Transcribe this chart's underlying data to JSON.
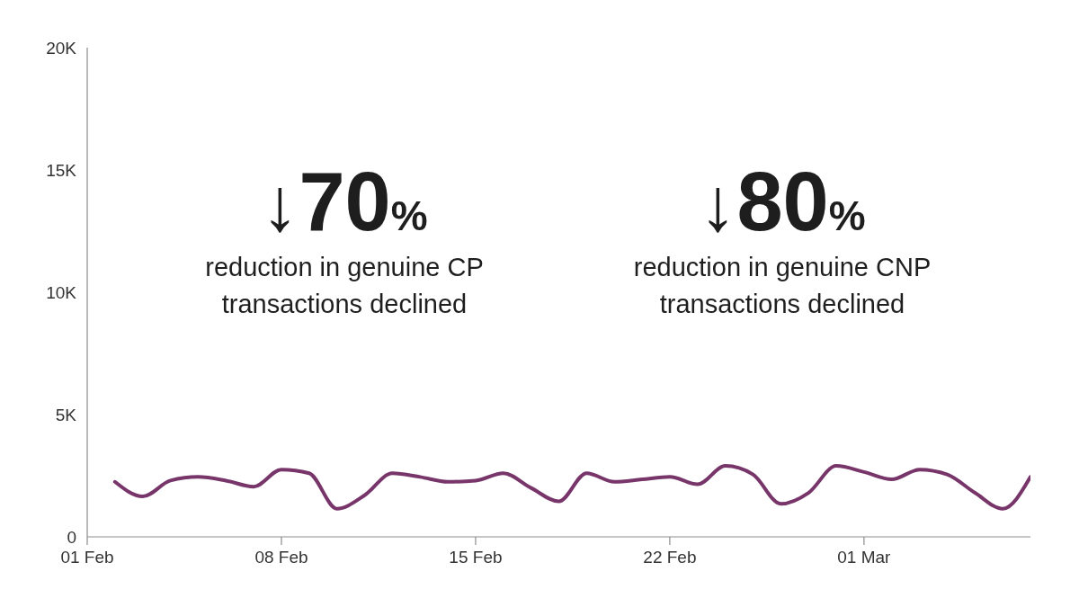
{
  "chart_data": {
    "type": "line",
    "x": [
      "--02-02",
      "--02-03",
      "--02-04",
      "--02-05",
      "--02-06",
      "--02-07",
      "--02-08",
      "--02-09",
      "--02-10",
      "--02-11",
      "--02-12",
      "--02-13",
      "--02-14",
      "--02-15",
      "--02-16",
      "--02-17",
      "--02-18",
      "--02-19",
      "--02-20",
      "--02-21",
      "--02-22",
      "--02-23",
      "--02-24",
      "--02-25",
      "--02-26",
      "--02-27",
      "--02-28",
      "--03-01",
      "--03-02",
      "--03-03",
      "--03-04",
      "--03-05",
      "--03-06",
      "--03-07"
    ],
    "values": [
      2250,
      1650,
      2300,
      2450,
      2300,
      2050,
      2750,
      2600,
      1150,
      1700,
      2600,
      2450,
      2250,
      2300,
      2600,
      2000,
      1450,
      2600,
      2250,
      2350,
      2450,
      2150,
      2900,
      2550,
      1350,
      1800,
      2900,
      2650,
      2350,
      2750,
      2550,
      1800,
      1150,
      2450
    ],
    "color": "#77356a",
    "marker": "none",
    "line_style": "solid",
    "xlim": [
      "--02-01",
      "--03-07"
    ],
    "xticks": [
      {
        "value": "--02-01",
        "label": "01 Feb"
      },
      {
        "value": "--02-08",
        "label": "08 Feb"
      },
      {
        "value": "--02-15",
        "label": "15 Feb"
      },
      {
        "value": "--02-22",
        "label": "22 Feb"
      },
      {
        "value": "--03-01",
        "label": "01 Mar"
      }
    ],
    "ylim": [
      0,
      20000
    ],
    "yticks": [
      0,
      {
        "value": 5000,
        "label": "5K"
      },
      {
        "value": 10000,
        "label": "10K"
      },
      {
        "value": 15000,
        "label": "15K"
      },
      {
        "value": 20000,
        "label": "20K"
      }
    ],
    "annotations": [
      "↓70%",
      "reduction in genuine CP transactions declined",
      "↓80%",
      "reduction in genuine CNP transactions declined"
    ]
  }
}
